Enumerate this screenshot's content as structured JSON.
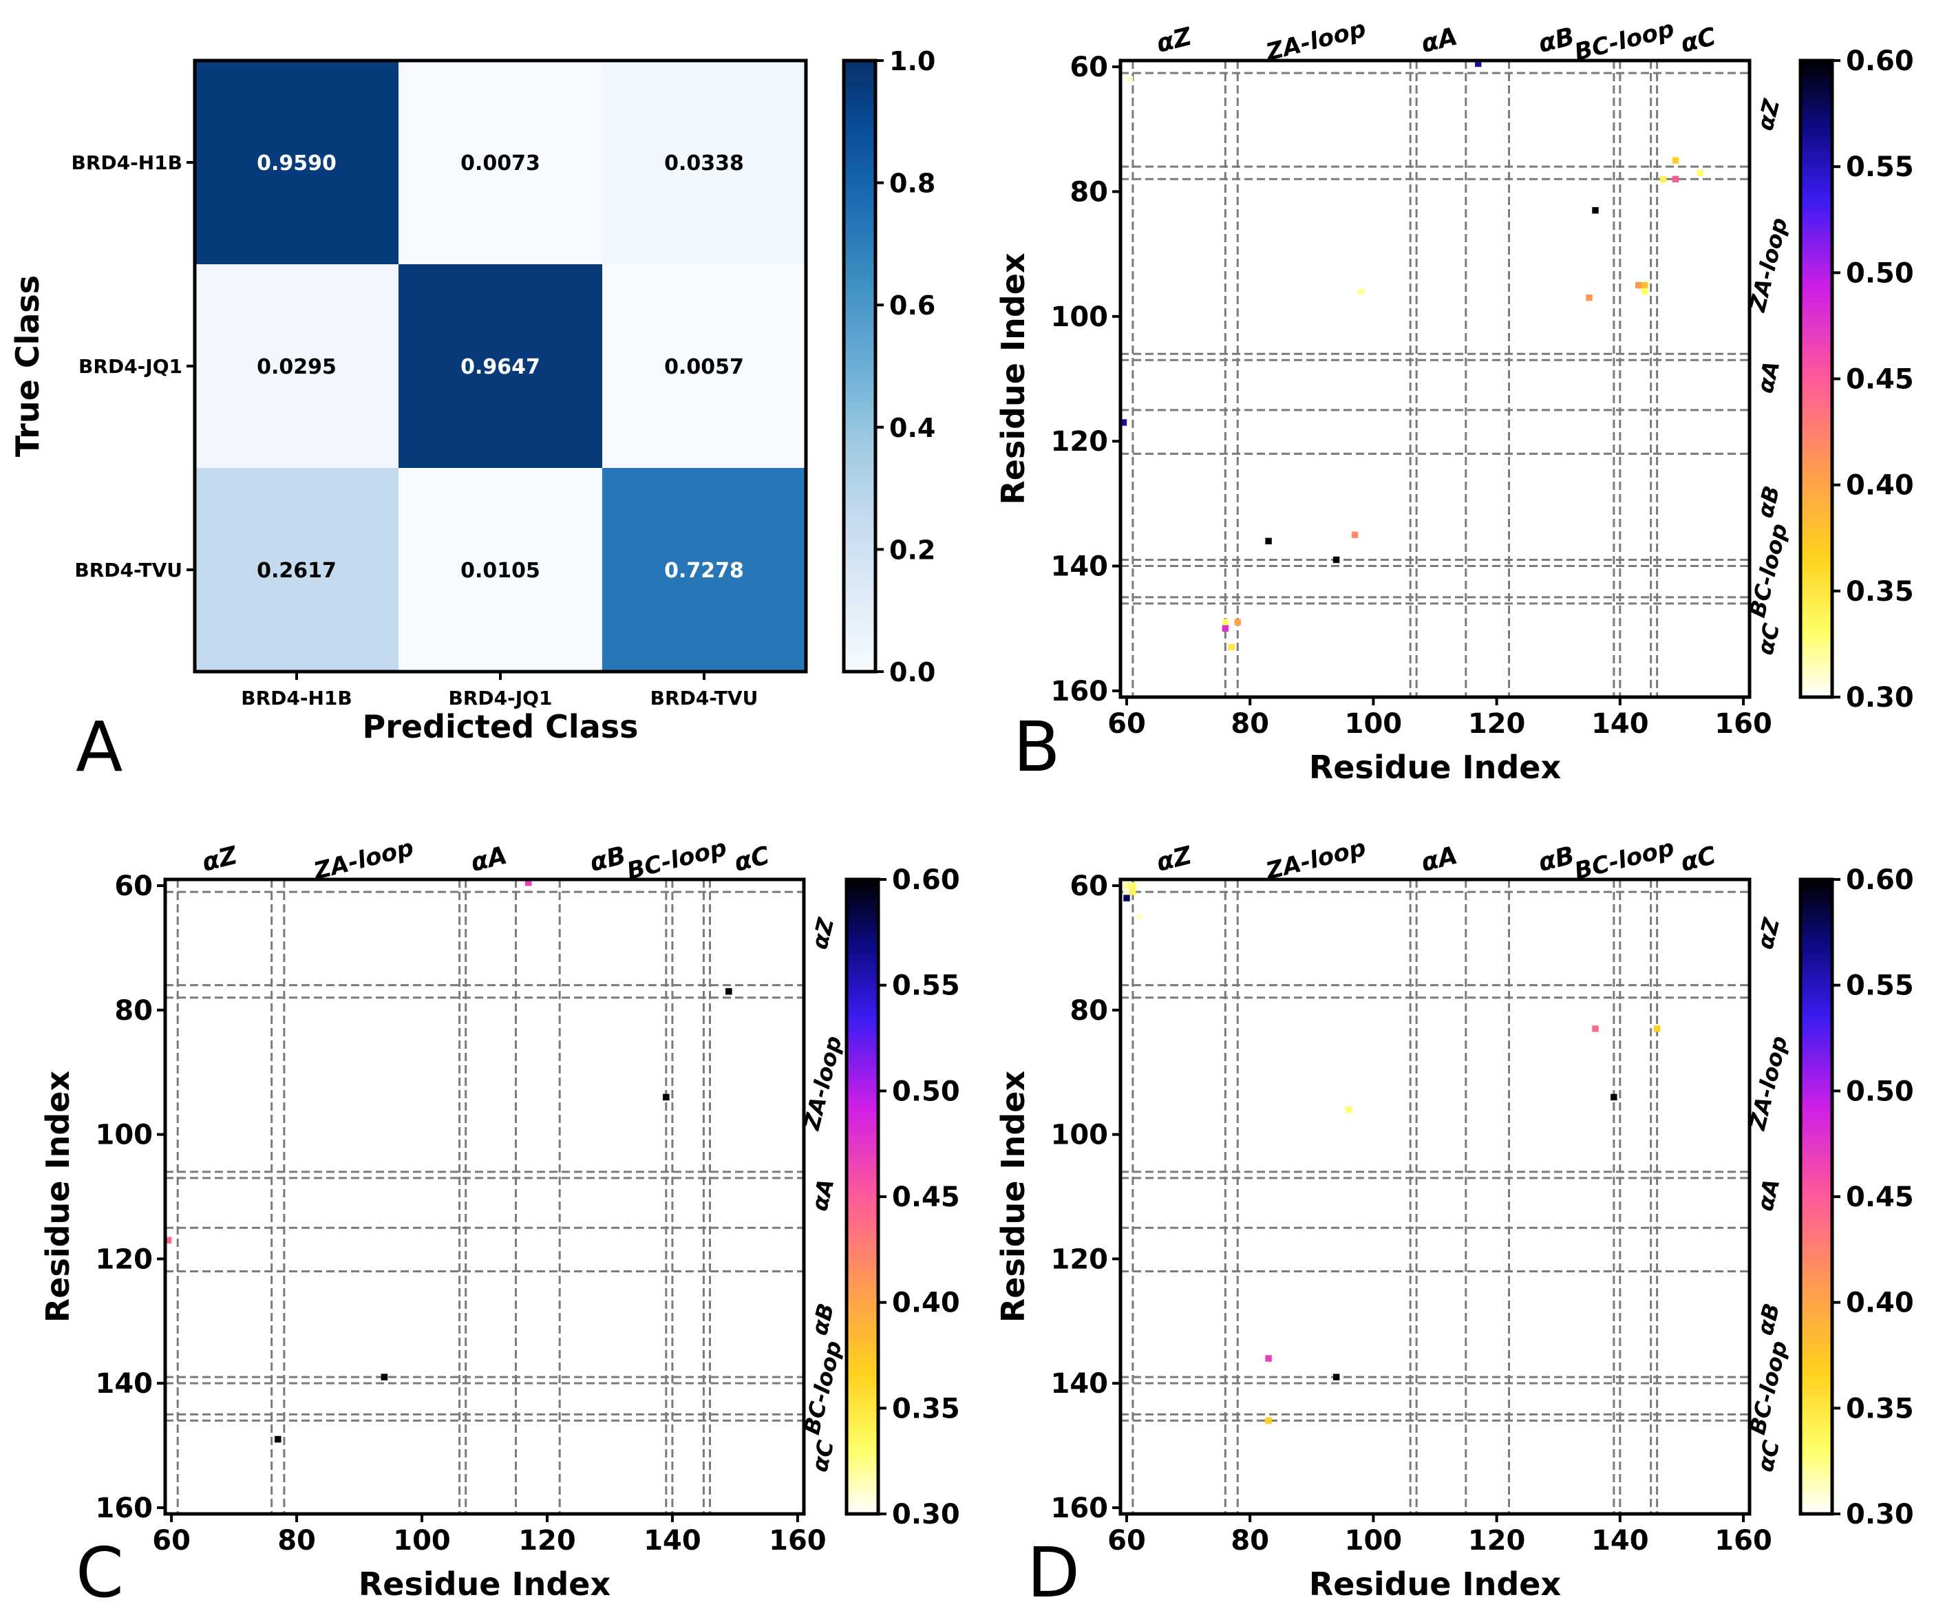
{
  "chart_data": [
    {
      "panel": "A",
      "type": "heatmap",
      "subtype": "confusion-matrix",
      "xlabel": "Predicted Class",
      "ylabel": "True Class",
      "x_categories": [
        "BRD4-H1B",
        "BRD4-JQ1",
        "BRD4-TVU"
      ],
      "y_categories": [
        "BRD4-H1B",
        "BRD4-JQ1",
        "BRD4-TVU"
      ],
      "values": [
        [
          0.959,
          0.0073,
          0.0338
        ],
        [
          0.0295,
          0.9647,
          0.0057
        ],
        [
          0.2617,
          0.0105,
          0.7278
        ]
      ],
      "labels": [
        [
          "0.9590",
          "0.0073",
          "0.0338"
        ],
        [
          "0.0295",
          "0.9647",
          "0.0057"
        ],
        [
          "0.2617",
          "0.0105",
          "0.7278"
        ]
      ],
      "colorbar": {
        "colormap": "Blues",
        "range": [
          0.0,
          1.0
        ],
        "ticks": [
          0.0,
          0.2,
          0.4,
          0.6,
          0.8,
          1.0
        ],
        "tick_labels": [
          "0.0",
          "0.2",
          "0.4",
          "0.6",
          "0.8",
          "1.0"
        ]
      }
    },
    {
      "panel": "B",
      "type": "heatmap",
      "subtype": "residue-contact-map",
      "xlabel": "Residue Index",
      "ylabel": "Residue Index",
      "xlim": [
        59,
        161
      ],
      "ylim": [
        59,
        161
      ],
      "xticks": [
        60,
        80,
        100,
        120,
        140,
        160
      ],
      "yticks": [
        60,
        80,
        100,
        120,
        140,
        160
      ],
      "region_boundaries": [
        61,
        76,
        78,
        106,
        107,
        115,
        122,
        139,
        140,
        145,
        146,
        161
      ],
      "top_region_labels": [
        {
          "text": "αZ",
          "pos": 68
        },
        {
          "text": "ZA-loop",
          "pos": 91
        },
        {
          "text": "αA",
          "pos": 111
        },
        {
          "text": "αB",
          "pos": 130
        },
        {
          "text": "BC-loop",
          "pos": 141
        },
        {
          "text": "αC",
          "pos": 153
        }
      ],
      "right_region_labels": [
        {
          "text": "αZ",
          "pos": 68
        },
        {
          "text": "ZA-loop",
          "pos": 92
        },
        {
          "text": "αA",
          "pos": 110
        },
        {
          "text": "αB",
          "pos": 130
        },
        {
          "text": "BC-loop",
          "pos": 141
        },
        {
          "text": "αC",
          "pos": 152
        }
      ],
      "points": [
        {
          "x": 60.5,
          "y": 62,
          "v": 0.31
        },
        {
          "x": 117,
          "y": 59.5,
          "v": 0.56
        },
        {
          "x": 136,
          "y": 83,
          "v": 0.6
        },
        {
          "x": 149,
          "y": 75,
          "v": 0.37
        },
        {
          "x": 147,
          "y": 78,
          "v": 0.34
        },
        {
          "x": 149,
          "y": 78,
          "v": 0.45
        },
        {
          "x": 153,
          "y": 77,
          "v": 0.33
        },
        {
          "x": 88,
          "y": 88,
          "v": 0.3
        },
        {
          "x": 98,
          "y": 96,
          "v": 0.32
        },
        {
          "x": 135,
          "y": 97,
          "v": 0.41
        },
        {
          "x": 143,
          "y": 95,
          "v": 0.41
        },
        {
          "x": 144,
          "y": 95,
          "v": 0.38
        },
        {
          "x": 144,
          "y": 96,
          "v": 0.33
        },
        {
          "x": 59.5,
          "y": 117,
          "v": 0.56
        },
        {
          "x": 83,
          "y": 136,
          "v": 0.6
        },
        {
          "x": 97,
          "y": 135,
          "v": 0.42
        },
        {
          "x": 94,
          "y": 139,
          "v": 0.6
        },
        {
          "x": 76,
          "y": 149,
          "v": 0.33
        },
        {
          "x": 78,
          "y": 149,
          "v": 0.4
        },
        {
          "x": 76,
          "y": 150,
          "v": 0.48
        },
        {
          "x": 77,
          "y": 153,
          "v": 0.35
        }
      ],
      "colorbar": {
        "colormap": "gnuplot2_r",
        "range": [
          0.3,
          0.6
        ],
        "ticks": [
          0.3,
          0.35,
          0.4,
          0.45,
          0.5,
          0.55,
          0.6
        ],
        "tick_labels": [
          "0.30",
          "0.35",
          "0.40",
          "0.45",
          "0.50",
          "0.55",
          "0.60"
        ]
      }
    },
    {
      "panel": "C",
      "type": "heatmap",
      "subtype": "residue-contact-map",
      "xlabel": "Residue Index",
      "ylabel": "Residue Index",
      "xlim": [
        59,
        161
      ],
      "ylim": [
        59,
        161
      ],
      "xticks": [
        60,
        80,
        100,
        120,
        140,
        160
      ],
      "yticks": [
        60,
        80,
        100,
        120,
        140,
        160
      ],
      "region_boundaries": [
        61,
        76,
        78,
        106,
        107,
        115,
        122,
        139,
        140,
        145,
        146,
        161
      ],
      "top_region_labels": [
        {
          "text": "αZ",
          "pos": 68
        },
        {
          "text": "ZA-loop",
          "pos": 91
        },
        {
          "text": "αA",
          "pos": 111
        },
        {
          "text": "αB",
          "pos": 130
        },
        {
          "text": "BC-loop",
          "pos": 141
        },
        {
          "text": "αC",
          "pos": 153
        }
      ],
      "right_region_labels": [
        {
          "text": "αZ",
          "pos": 68
        },
        {
          "text": "ZA-loop",
          "pos": 92
        },
        {
          "text": "αA",
          "pos": 110
        },
        {
          "text": "αB",
          "pos": 130
        },
        {
          "text": "BC-loop",
          "pos": 141
        },
        {
          "text": "αC",
          "pos": 152
        }
      ],
      "points": [
        {
          "x": 117,
          "y": 59.5,
          "v": 0.47
        },
        {
          "x": 149,
          "y": 77,
          "v": 0.6
        },
        {
          "x": 139,
          "y": 94,
          "v": 0.6
        },
        {
          "x": 59.5,
          "y": 117,
          "v": 0.44
        },
        {
          "x": 94,
          "y": 139,
          "v": 0.6
        },
        {
          "x": 77,
          "y": 149,
          "v": 0.6
        }
      ],
      "colorbar": {
        "colormap": "gnuplot2_r",
        "range": [
          0.3,
          0.6
        ],
        "ticks": [
          0.3,
          0.35,
          0.4,
          0.45,
          0.5,
          0.55,
          0.6
        ],
        "tick_labels": [
          "0.30",
          "0.35",
          "0.40",
          "0.45",
          "0.50",
          "0.55",
          "0.60"
        ]
      }
    },
    {
      "panel": "D",
      "type": "heatmap",
      "subtype": "residue-contact-map",
      "xlabel": "Residue Index",
      "ylabel": "Residue Index",
      "xlim": [
        59,
        161
      ],
      "ylim": [
        59,
        161
      ],
      "xticks": [
        60,
        80,
        100,
        120,
        140,
        160
      ],
      "yticks": [
        60,
        80,
        100,
        120,
        140,
        160
      ],
      "region_boundaries": [
        61,
        76,
        78,
        106,
        107,
        115,
        122,
        139,
        140,
        145,
        146,
        161
      ],
      "top_region_labels": [
        {
          "text": "αZ",
          "pos": 68
        },
        {
          "text": "ZA-loop",
          "pos": 91
        },
        {
          "text": "αA",
          "pos": 111
        },
        {
          "text": "αB",
          "pos": 130
        },
        {
          "text": "BC-loop",
          "pos": 141
        },
        {
          "text": "αC",
          "pos": 153
        }
      ],
      "right_region_labels": [
        {
          "text": "αZ",
          "pos": 68
        },
        {
          "text": "ZA-loop",
          "pos": 92
        },
        {
          "text": "αA",
          "pos": 110
        },
        {
          "text": "αB",
          "pos": 130
        },
        {
          "text": "BC-loop",
          "pos": 141
        },
        {
          "text": "αC",
          "pos": 152
        }
      ],
      "points": [
        {
          "x": 60,
          "y": 60,
          "v": 0.32
        },
        {
          "x": 61,
          "y": 60,
          "v": 0.33
        },
        {
          "x": 60,
          "y": 61,
          "v": 0.31
        },
        {
          "x": 61,
          "y": 61,
          "v": 0.34
        },
        {
          "x": 60,
          "y": 62,
          "v": 0.58
        },
        {
          "x": 62,
          "y": 65,
          "v": 0.31
        },
        {
          "x": 136,
          "y": 83,
          "v": 0.44
        },
        {
          "x": 146,
          "y": 83,
          "v": 0.37
        },
        {
          "x": 139,
          "y": 94,
          "v": 0.6
        },
        {
          "x": 96,
          "y": 96,
          "v": 0.33
        },
        {
          "x": 83,
          "y": 136,
          "v": 0.47
        },
        {
          "x": 94,
          "y": 139,
          "v": 0.6
        },
        {
          "x": 83,
          "y": 146,
          "v": 0.37
        }
      ],
      "colorbar": {
        "colormap": "gnuplot2_r",
        "range": [
          0.3,
          0.6
        ],
        "ticks": [
          0.3,
          0.35,
          0.4,
          0.45,
          0.5,
          0.55,
          0.6
        ],
        "tick_labels": [
          "0.30",
          "0.35",
          "0.40",
          "0.45",
          "0.50",
          "0.55",
          "0.60"
        ]
      }
    }
  ]
}
